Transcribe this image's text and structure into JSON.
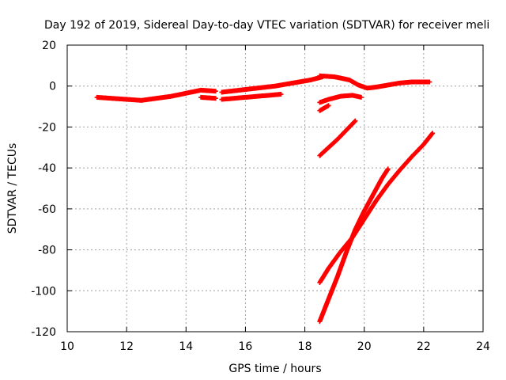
{
  "chart_data": {
    "type": "scatter",
    "title": "Day 192 of 2019, Sidereal Day-to-day VTEC variation (SDTVAR) for receiver meli",
    "xlabel": "GPS time / hours",
    "ylabel": "SDTVAR / TECUs",
    "xlim": [
      10,
      24
    ],
    "ylim": [
      -120,
      20
    ],
    "xticks": [
      "10",
      "12",
      "14",
      "16",
      "18",
      "20",
      "22",
      "24"
    ],
    "yticks": [
      "20",
      "0",
      "-20",
      "-40",
      "-60",
      "-80",
      "-100",
      "-120"
    ],
    "grid": true,
    "marker": "plus",
    "color": "#ff0000",
    "series": [
      {
        "x": [
          11.0,
          11.5,
          12.0,
          12.5,
          13.0,
          13.5,
          14.0,
          14.5,
          15.0
        ],
        "y": [
          -5.5,
          -6.0,
          -6.5,
          -7.0,
          -6.0,
          -5.0,
          -3.5,
          -2.0,
          -2.5
        ]
      },
      {
        "x": [
          14.5,
          15.0
        ],
        "y": [
          -5.5,
          -6.0
        ]
      },
      {
        "x": [
          15.2,
          15.8,
          16.4,
          17.0,
          17.6,
          18.2,
          18.6
        ],
        "y": [
          -3.0,
          -2.0,
          -1.0,
          0.0,
          1.5,
          3.0,
          4.5
        ]
      },
      {
        "x": [
          15.2,
          15.6,
          16.0,
          16.4,
          16.8,
          17.2
        ],
        "y": [
          -6.5,
          -6.0,
          -5.5,
          -5.0,
          -4.5,
          -4.0
        ]
      },
      {
        "x": [
          18.5,
          19.0,
          19.5,
          19.8,
          20.1,
          20.4,
          20.8,
          21.2,
          21.6,
          22.2
        ],
        "y": [
          5.0,
          4.5,
          3.0,
          0.5,
          -1.0,
          -0.5,
          0.5,
          1.5,
          2.0,
          2.0
        ]
      },
      {
        "x": [
          18.5,
          18.8,
          19.2,
          19.6,
          19.9
        ],
        "y": [
          -8.0,
          -6.5,
          -5.0,
          -4.5,
          -5.5
        ]
      },
      {
        "x": [
          18.5,
          18.8
        ],
        "y": [
          -12.0,
          -9.5
        ]
      },
      {
        "x": [
          18.5,
          18.8,
          19.1,
          19.4,
          19.7
        ],
        "y": [
          -34.0,
          -30.0,
          -26.0,
          -21.5,
          -17.0
        ]
      },
      {
        "x": [
          18.5,
          18.8,
          19.2,
          19.6,
          20.0,
          20.4,
          20.8,
          21.2,
          21.6,
          22.0,
          22.3
        ],
        "y": [
          -96.0,
          -89.0,
          -81.0,
          -74.0,
          -65.0,
          -56.0,
          -48.0,
          -41.0,
          -34.5,
          -28.5,
          -23.0
        ]
      },
      {
        "x": [
          18.5,
          18.8,
          19.1,
          19.4,
          19.7,
          20.0,
          20.3,
          20.6,
          20.8
        ],
        "y": [
          -115.0,
          -104.0,
          -93.0,
          -81.0,
          -70.0,
          -61.0,
          -53.0,
          -45.0,
          -40.5
        ]
      }
    ]
  }
}
